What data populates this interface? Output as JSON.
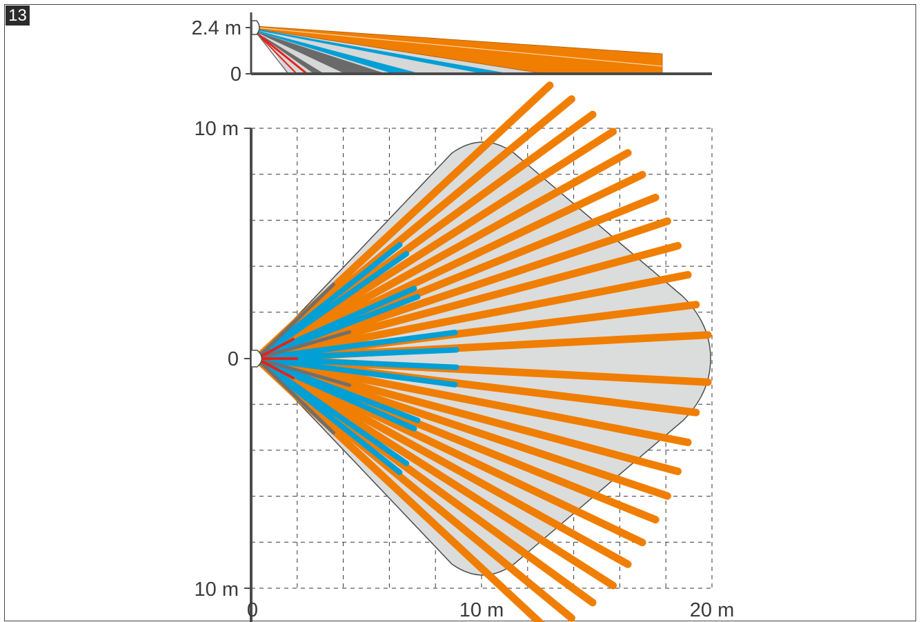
{
  "figure_number": "13",
  "side_view": {
    "y_labels": [
      "2.4 m",
      "0"
    ]
  },
  "top_view": {
    "y_labels": [
      "10 m",
      "0",
      "10 m"
    ],
    "x_labels": [
      "0",
      "10 m",
      "20 m"
    ]
  },
  "colors": {
    "orange": "#f07e00",
    "blue": "#009fd6",
    "gray": "#6f6f6f",
    "red": "#e2231a",
    "zone": "#dbdcdc",
    "axis": "#4a4a4a"
  },
  "icons": {
    "sensor": "detector-icon"
  }
}
